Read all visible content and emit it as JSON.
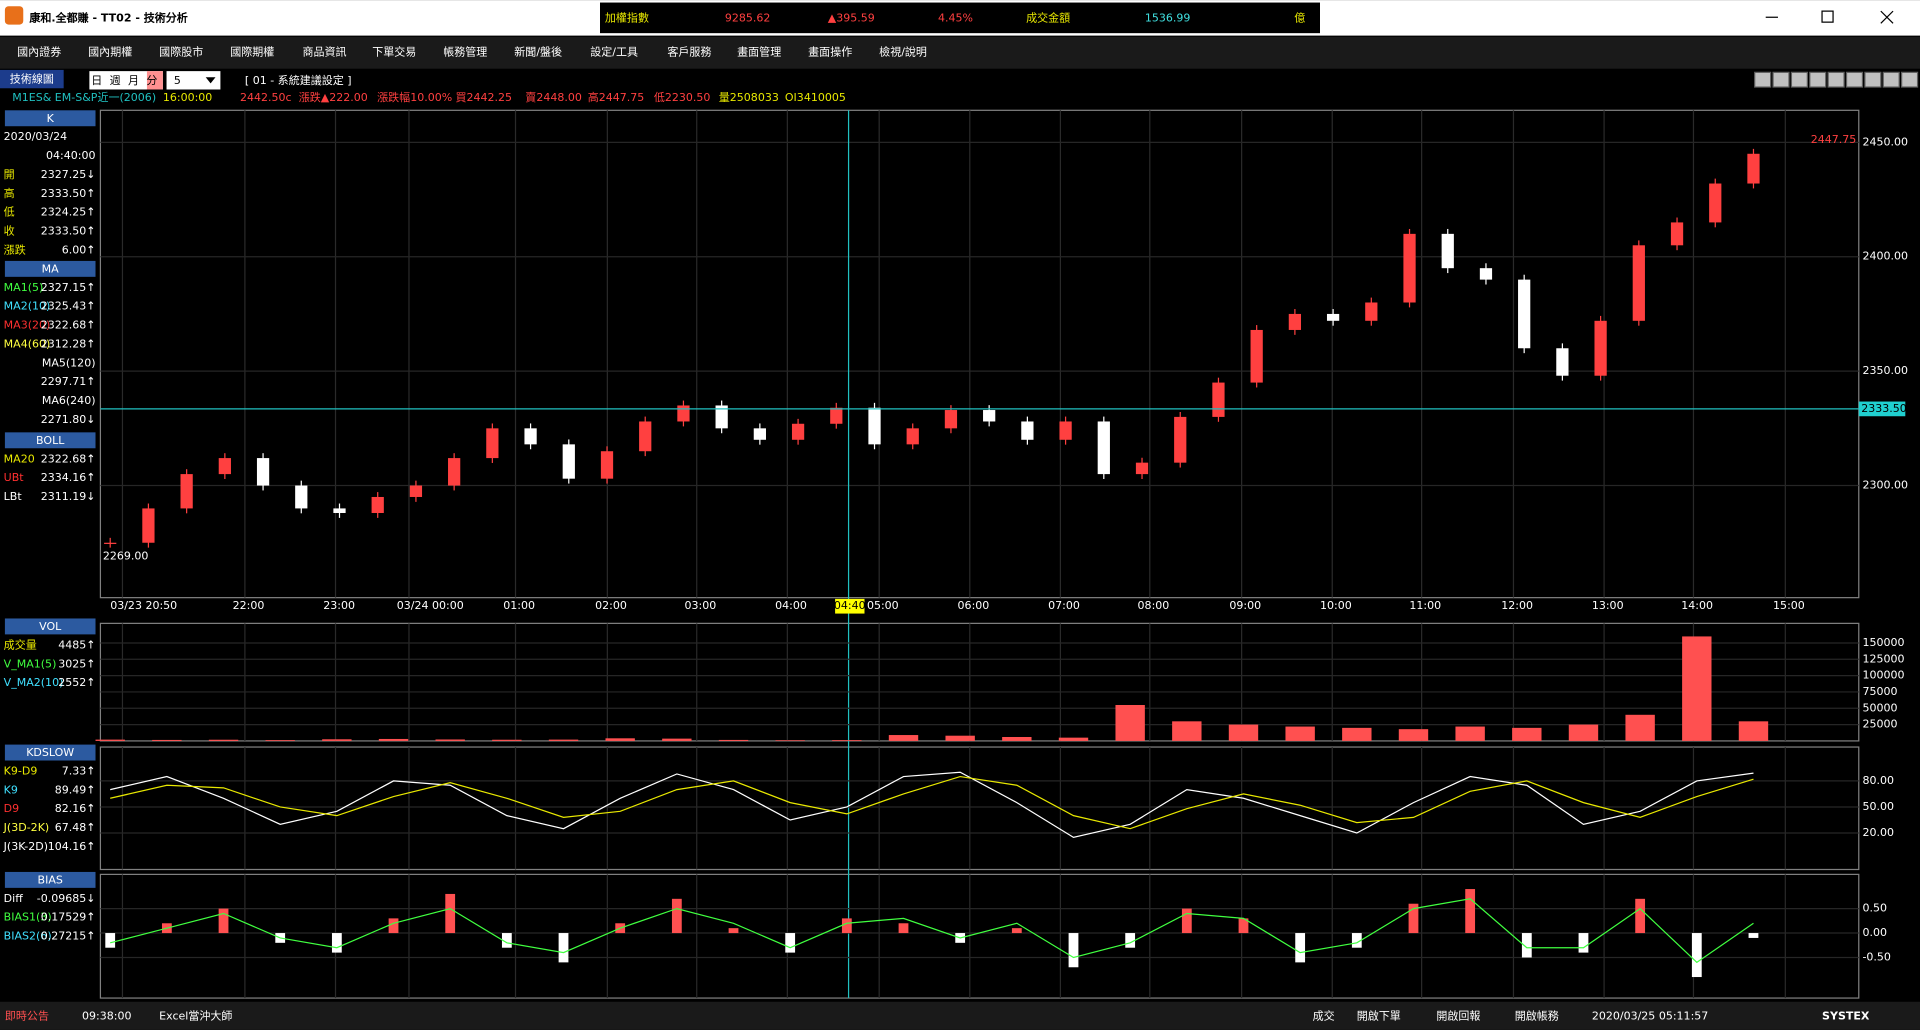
{
  "title_bar": {
    "title": "康和.全都賺 - TT02 - 技術分析",
    "ticker": [
      {
        "text": "加權指數",
        "color": "#e8e800"
      },
      {
        "text": "9285.62",
        "color": "#ff4040"
      },
      {
        "text": "▲395.59",
        "color": "#ff4040"
      },
      {
        "text": "4.45%",
        "color": "#ff4040"
      },
      {
        "text": "成交金額",
        "color": "#e8e800"
      },
      {
        "text": "1536.99",
        "color": "#40e0e0"
      },
      {
        "text": "億",
        "color": "#e8e800"
      }
    ]
  },
  "menu": [
    "國內證券",
    "國內期權",
    "國際股市",
    "國際期權",
    "商品資訊",
    "下單交易",
    "帳務管理",
    "新聞/盤後",
    "設定/工具",
    "客戶服務",
    "畫面管理",
    "畫面操作",
    "檢視/說明"
  ],
  "toolbar": {
    "label": "技術線圖",
    "periods": [
      "日",
      "週",
      "月",
      "分"
    ],
    "interval": "5",
    "preset": "[ 01 - 系統建議設定 ]"
  },
  "quote": [
    {
      "text": "M1ES& EM-S&P近一(2006)",
      "color": "#20c0c0"
    },
    {
      "text": "16:00:00",
      "color": "#e8e800"
    },
    {
      "text": "2442.50c",
      "color": "#ff4040"
    },
    {
      "text": "漲跌▲222.00",
      "color": "#ff4040"
    },
    {
      "text": "漲跌幅10.00%",
      "color": "#ff4040"
    },
    {
      "text": "買2442.25",
      "color": "#ff4040"
    },
    {
      "text": "賣2448.00",
      "color": "#ff4040"
    },
    {
      "text": "高2447.75",
      "color": "#ff4040"
    },
    {
      "text": "低2230.50",
      "color": "#ff4040"
    },
    {
      "text": "量2508033",
      "color": "#e8e800"
    },
    {
      "text": "OI3410005",
      "color": "#e8e800"
    }
  ],
  "left_panel": [
    {
      "title": "K",
      "rows": [
        [
          "2020/03/24"
        ],
        [
          "04:40:00"
        ],
        [
          "開",
          "2327.25↓"
        ],
        [
          "高",
          "2333.50↑"
        ],
        [
          "低",
          "2324.25↑"
        ],
        [
          "收",
          "2333.50↑"
        ],
        [
          "漲跌",
          "6.00↑"
        ]
      ],
      "colors": [
        "#ffffff",
        "#ffffff",
        "#e8e800",
        "#e8e800",
        "#e8e800",
        "#e8e800",
        "#e8e800"
      ]
    },
    {
      "title": "MA",
      "rows": [
        [
          "MA1(5)",
          "2327.15↑"
        ],
        [
          "MA2(10)",
          "2325.43↑"
        ],
        [
          "MA3(20)",
          "2322.68↑"
        ],
        [
          "MA4(60)",
          "2312.28↑"
        ],
        [
          "MA5(120)"
        ],
        [
          "2297.71↑"
        ],
        [
          "MA6(240)"
        ],
        [
          "2271.80↓"
        ]
      ],
      "colors": [
        "#40ff40",
        "#40e0ff",
        "#ff3030",
        "#ffff40",
        "#ffffff",
        "#ffffff",
        "#ffffff",
        "#ffffff"
      ]
    },
    {
      "title": "BOLL",
      "rows": [
        [
          "MA20",
          "2322.68↑"
        ],
        [
          "UBt",
          "2334.16↑"
        ],
        [
          "LBt",
          "2311.19↓"
        ]
      ],
      "colors": [
        "#e8e800",
        "#ff3030",
        "#ffffff"
      ]
    },
    {
      "title": "VOL",
      "rows": [
        [
          "成交量",
          "4485↑"
        ],
        [
          "V_MA1(5)",
          "3025↑"
        ],
        [
          "V_MA2(10)",
          "2552↑"
        ]
      ],
      "colors": [
        "#e8e800",
        "#40ff40",
        "#40e0ff"
      ]
    },
    {
      "title": "KDSLOW",
      "rows": [
        [
          "K9-D9",
          "7.33↑"
        ],
        [
          "K9",
          "89.49↑"
        ],
        [
          "D9",
          "82.16↑"
        ],
        [
          "J(3D-2K)",
          "67.48↑"
        ],
        [
          "J(3K-2D)",
          "104.16↑"
        ]
      ],
      "colors": [
        "#e8e800",
        "#40e0ff",
        "#ff3030",
        "#ffff40",
        "#ffffff"
      ]
    },
    {
      "title": "BIAS",
      "rows": [
        [
          "Diff",
          "-0.09685↓"
        ],
        [
          "BIAS1(3)",
          "0.17529↑"
        ],
        [
          "BIAS2(6)",
          "0.27215↑"
        ]
      ],
      "colors": [
        "#ffffff",
        "#40ff40",
        "#40e0ff"
      ]
    }
  ],
  "chart_data": [
    {
      "type": "candle",
      "closes": [
        2275,
        2290,
        2305,
        2312,
        2300,
        2290,
        2288,
        2295,
        2300,
        2312,
        2325,
        2318,
        2303,
        2315,
        2328,
        2335,
        2325,
        2320,
        2327,
        2334,
        2318,
        2325,
        2333,
        2328,
        2320,
        2328,
        2305,
        2310,
        2330,
        2345,
        2368,
        2375,
        2372,
        2380,
        2410,
        2395,
        2390,
        2360,
        2348,
        2372,
        2405,
        2415,
        2432,
        2445
      ],
      "ylim": [
        2251,
        2464
      ],
      "yticks": [
        {
          "value": 2300,
          "label": "2300.00"
        },
        {
          "value": 2350,
          "label": "2350.00"
        },
        {
          "value": 2400,
          "label": "2400.00"
        },
        {
          "value": 2450,
          "label": "2450.00"
        }
      ],
      "x_labels": [
        "03/23 20:50",
        "22:00",
        "23:00",
        "03/24 00:00",
        "01:00",
        "02:00",
        "03:00",
        "04:00",
        "05:00",
        "06:00",
        "07:00",
        "08:00",
        "09:00",
        "10:00",
        "11:00",
        "12:00",
        "13:00",
        "14:00",
        "15:00"
      ],
      "cursor_time": "04:40",
      "cursor_price": {
        "value": 2333.5,
        "label": "2333.50"
      },
      "high_label": {
        "value": 2447.75,
        "label": "2447.75"
      },
      "low_label": {
        "value": 2269,
        "label": "2269.00"
      }
    },
    {
      "type": "bar",
      "values": [
        2000,
        1500,
        1800,
        1200,
        2500,
        3000,
        2200,
        1800,
        2000,
        4000,
        3500,
        1500,
        1000,
        1200,
        9000,
        8000,
        6000,
        5000,
        55000,
        30000,
        25000,
        22000,
        20000,
        18000,
        22000,
        20000,
        25000,
        40000,
        160000,
        30000
      ],
      "ylim": [
        0,
        180000
      ],
      "yticks": [
        25000,
        50000,
        75000,
        100000,
        125000,
        150000
      ],
      "color": "#ff5050"
    },
    {
      "type": "line",
      "series": [
        {
          "color": "#ffffff",
          "values": [
            70,
            85,
            60,
            30,
            45,
            80,
            75,
            40,
            25,
            60,
            88,
            70,
            35,
            50,
            85,
            90,
            55,
            15,
            30,
            70,
            60,
            40,
            20,
            55,
            85,
            75,
            30,
            45,
            80,
            89
          ]
        },
        {
          "color": "#e8e800",
          "values": [
            60,
            75,
            72,
            50,
            40,
            62,
            78,
            60,
            38,
            45,
            70,
            80,
            55,
            42,
            65,
            85,
            75,
            40,
            25,
            48,
            65,
            52,
            32,
            38,
            68,
            80,
            55,
            38,
            62,
            82
          ]
        }
      ],
      "ylim": [
        -22,
        119
      ],
      "yticks": [
        {
          "value": 20,
          "label": "20.00"
        },
        {
          "value": 50,
          "label": "50.00"
        },
        {
          "value": 80,
          "label": "80.00"
        }
      ]
    },
    {
      "type": "bar_line",
      "values": [
        -0.3,
        0.2,
        0.5,
        -0.2,
        -0.4,
        0.3,
        0.8,
        -0.3,
        -0.6,
        0.2,
        0.7,
        0.1,
        -0.4,
        0.3,
        0.2,
        -0.2,
        0.1,
        -0.7,
        -0.3,
        0.5,
        0.3,
        -0.6,
        -0.3,
        0.6,
        0.9,
        -0.5,
        -0.4,
        0.7,
        -0.9,
        -0.1
      ],
      "color": "#ff5050",
      "series": [
        {
          "color": "#40ff40",
          "values": [
            -0.2,
            0.1,
            0.4,
            -0.1,
            -0.3,
            0.2,
            0.5,
            -0.2,
            -0.4,
            0.1,
            0.5,
            0.2,
            -0.3,
            0.2,
            0.3,
            -0.1,
            0.2,
            -0.5,
            -0.2,
            0.4,
            0.3,
            -0.4,
            -0.2,
            0.5,
            0.7,
            -0.3,
            -0.3,
            0.5,
            -0.6,
            0.2
          ]
        }
      ],
      "ylim": [
        -1.33,
        1.2
      ],
      "yticks": [
        {
          "value": -0.5,
          "label": "-0.50"
        },
        {
          "value": 0,
          "label": "0.00"
        },
        {
          "value": 0.5,
          "label": "0.50"
        }
      ]
    }
  ],
  "status_bar": {
    "left": [
      "即時公告",
      "09:38:00",
      "Excel當沖大師"
    ],
    "right": [
      "成交",
      "開啟下單",
      "開啟回報",
      "開啟帳務",
      "2020/03/25 05:11:57"
    ],
    "brand": "SYSTEX"
  }
}
